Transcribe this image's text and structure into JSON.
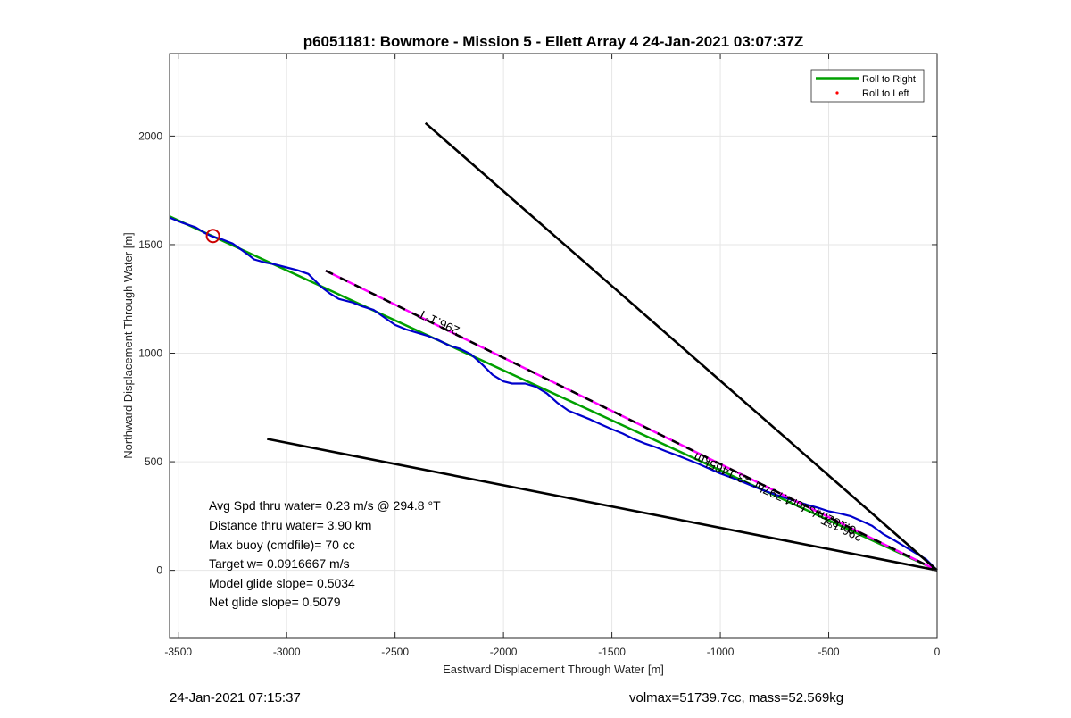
{
  "chart_data": {
    "type": "line",
    "title": "p6051181: Bowmore - Mission 5 - Ellett Array 4 24-Jan-2021 03:07:37Z",
    "xlabel": "Eastward Displacement Through Water [m]",
    "ylabel": "Northward Displacement Through Water [m]",
    "xlim": [
      -3540,
      0
    ],
    "ylim": [
      -310,
      2380
    ],
    "x_ticks": [
      -3500,
      -3000,
      -2500,
      -2000,
      -1500,
      -1000,
      -500,
      0
    ],
    "y_ticks": [
      0,
      500,
      1000,
      1500,
      2000
    ],
    "grid": true,
    "legend_position": "top-right",
    "legend": [
      {
        "label": "Roll to Right",
        "color": "#00a000",
        "style": "line"
      },
      {
        "label": "Roll to Left",
        "color": "#ff0000",
        "style": "dot"
      }
    ],
    "series": [
      {
        "name": "Roll to Right",
        "color": "#00a000",
        "x": [
          -3540,
          0
        ],
        "y": [
          1630,
          0
        ]
      },
      {
        "color": "#0000cc",
        "x": [
          -3540,
          -3480,
          -3420,
          -3380,
          -3350,
          -3300,
          -3250,
          -3200,
          -3170,
          -3150,
          -3100,
          -3050,
          -3000,
          -2950,
          -2900,
          -2870,
          -2840,
          -2800,
          -2760,
          -2700,
          -2650,
          -2600,
          -2550,
          -2500,
          -2450,
          -2400,
          -2350,
          -2300,
          -2250,
          -2200,
          -2150,
          -2100,
          -2050,
          -2000,
          -1960,
          -1900,
          -1850,
          -1800,
          -1750,
          -1700,
          -1650,
          -1600,
          -1550,
          -1500,
          -1450,
          -1400,
          -1350,
          -1300,
          -1250,
          -1200,
          -1150,
          -1100,
          -1050,
          -1000,
          -950,
          -900,
          -850,
          -800,
          -750,
          -700,
          -650,
          -600,
          -550,
          -500,
          -450,
          -400,
          -350,
          -300,
          -250,
          -200,
          -150,
          -100,
          -50,
          0
        ],
        "y": [
          1625,
          1600,
          1580,
          1555,
          1540,
          1525,
          1505,
          1470,
          1448,
          1432,
          1418,
          1408,
          1395,
          1382,
          1365,
          1335,
          1305,
          1275,
          1250,
          1235,
          1215,
          1200,
          1165,
          1130,
          1110,
          1095,
          1080,
          1060,
          1035,
          1020,
          995,
          950,
          900,
          870,
          860,
          860,
          845,
          815,
          770,
          735,
          715,
          695,
          672,
          650,
          630,
          605,
          585,
          568,
          548,
          530,
          510,
          490,
          468,
          446,
          428,
          408,
          388,
          368,
          350,
          334,
          318,
          302,
          288,
          272,
          262,
          250,
          228,
          205,
          168,
          140,
          110,
          80,
          50,
          0
        ]
      },
      {
        "color": "#ff00ff",
        "dashed_overlay": "#000000",
        "x": [
          -2820,
          0
        ],
        "y": [
          1380,
          0
        ]
      },
      {
        "color": "#000000",
        "x": [
          -2360,
          0
        ],
        "y": [
          2060,
          0
        ]
      },
      {
        "color": "#000000",
        "x": [
          -3090,
          0
        ],
        "y": [
          605,
          0
        ]
      }
    ],
    "marker": {
      "x": -3340,
      "y": 1540,
      "color": "#cc0000"
    },
    "annotations": [
      {
        "text": "296.1°T",
        "x": -2290,
        "y": 1160,
        "rotate": 205
      },
      {
        "text": "0.182m/s for4.797hr =3.1465km",
        "x": -740,
        "y": 370,
        "rotate": 205
      },
      {
        "text": "296.1°T",
        "x": -430,
        "y": 210,
        "rotate": 205
      }
    ],
    "stats": [
      "Avg Spd thru water=  0.23 m/s @ 294.8 °T",
      "Distance thru water=  3.90 km",
      "Max buoy (cmdfile)= 70 cc",
      "Target w= 0.0916667 m/s",
      "Model glide slope= 0.5034",
      "Net glide slope= 0.5079"
    ]
  },
  "footer": {
    "timestamp": "24-Jan-2021 07:15:37",
    "info": "volmax=51739.7cc, mass=52.569kg"
  }
}
